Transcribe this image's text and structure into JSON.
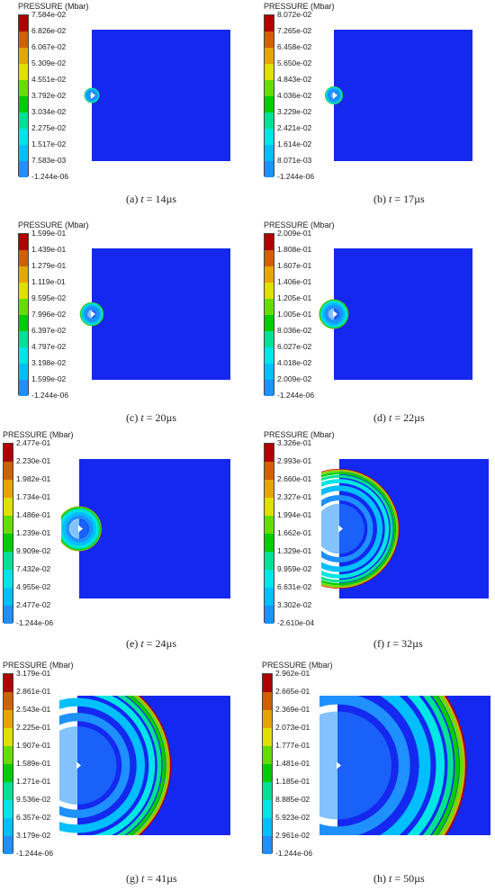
{
  "legend_title": "PRESSURE (Mbar)",
  "colors": [
    "#0000ff",
    "#1e90ff",
    "#00bfff",
    "#00e5e5",
    "#00e096",
    "#00cc00",
    "#66dd00",
    "#e0e000",
    "#e8a400",
    "#d06000",
    "#b00000"
  ],
  "panels": [
    {
      "id": "a",
      "label": "(a) ",
      "var": "t",
      "eq": " = ",
      "time": "14µs",
      "ticks": [
        "7.584e-02",
        "6.826e-02",
        "6.067e-02",
        "5.309e-02",
        "4.551e-02",
        "3.792e-02",
        "3.034e-02",
        "2.275e-02",
        "1.517e-02",
        "7.583e-03",
        "-1.244e-06"
      ],
      "wave_radius": 0.05
    },
    {
      "id": "b",
      "label": "(b) ",
      "var": "t",
      "eq": " = ",
      "time": "17µs",
      "ticks": [
        "8.072e-02",
        "7.265e-02",
        "6.458e-02",
        "5.650e-02",
        "4.843e-02",
        "4.036e-02",
        "3.229e-02",
        "2.421e-02",
        "1.614e-02",
        "8.071e-03",
        "-1.244e-06"
      ],
      "wave_radius": 0.06
    },
    {
      "id": "c",
      "label": "(c) ",
      "var": "t",
      "eq": " = ",
      "time": "20µs",
      "ticks": [
        "1.599e-01",
        "1.439e-01",
        "1.279e-01",
        "1.119e-01",
        "9.595e-02",
        "7.996e-02",
        "6.397e-02",
        "4.797e-02",
        "3.198e-02",
        "1.599e-02",
        "-1.244e-06"
      ],
      "wave_radius": 0.08
    },
    {
      "id": "d",
      "label": "(d) ",
      "var": "t",
      "eq": " = ",
      "time": "22µs",
      "ticks": [
        "2.009e-01",
        "1.808e-01",
        "1.607e-01",
        "1.406e-01",
        "1.205e-01",
        "1.005e-01",
        "8.036e-02",
        "6.027e-02",
        "4.018e-02",
        "2.009e-02",
        "-1.244e-06"
      ],
      "wave_radius": 0.1
    },
    {
      "id": "e",
      "label": "(e) ",
      "var": "t",
      "eq": " = ",
      "time": "24µs",
      "ticks": [
        "2.477e-01",
        "2.230e-01",
        "1.982e-01",
        "1.734e-01",
        "1.486e-01",
        "1.239e-01",
        "9.909e-02",
        "7.432e-02",
        "4.955e-02",
        "2.477e-02",
        "-1.244e-06"
      ],
      "wave_radius": 0.14
    },
    {
      "id": "f",
      "label": "(f) ",
      "var": "t",
      "eq": " = ",
      "time": "32µs",
      "ticks": [
        "3.326e-01",
        "2.993e-01",
        "2.660e-01",
        "2.327e-01",
        "1.994e-01",
        "1.662e-01",
        "1.329e-01",
        "9.959e-02",
        "6.631e-02",
        "3.302e-02",
        "-2.610e-04"
      ],
      "wave_radius": 0.38
    },
    {
      "id": "g",
      "label": "(g) ",
      "var": "t",
      "eq": " = ",
      "time": "41µs",
      "ticks": [
        "3.179e-01",
        "2.861e-01",
        "2.543e-01",
        "2.225e-01",
        "1.907e-01",
        "1.589e-01",
        "1.271e-01",
        "9.536e-02",
        "6.357e-02",
        "3.179e-02",
        "-1.244e-06"
      ],
      "wave_radius": 0.58
    },
    {
      "id": "h",
      "label": "(h) ",
      "var": "t",
      "eq": " = ",
      "time": "50µs",
      "ticks": [
        "2.962e-01",
        "2.665e-01",
        "2.369e-01",
        "2.073e-01",
        "1.777e-01",
        "1.481e-01",
        "1.185e-01",
        "8.885e-02",
        "5.923e-02",
        "2.961e-02",
        "-1.244e-06"
      ],
      "wave_radius": 0.8
    }
  ]
}
